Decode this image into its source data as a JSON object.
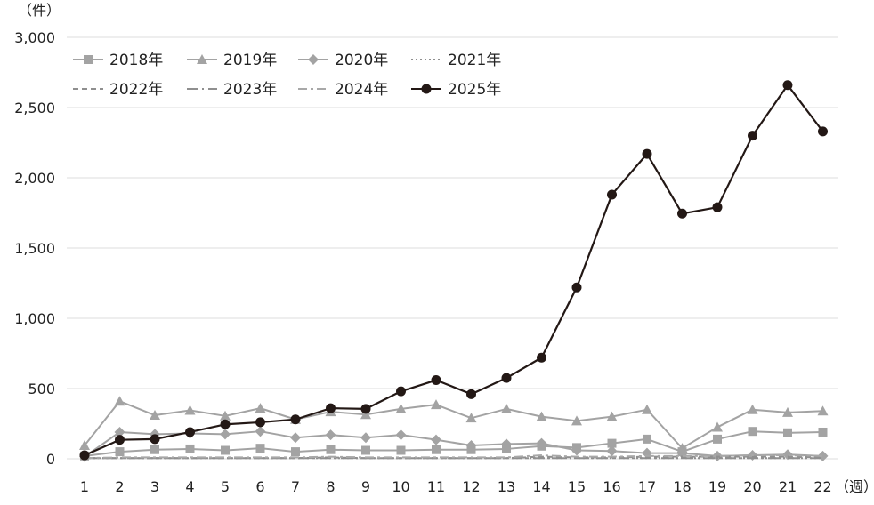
{
  "chart_data": {
    "type": "line",
    "y_unit_label": "（件）",
    "x_unit_label": "（週）",
    "x": [
      1,
      2,
      3,
      4,
      5,
      6,
      7,
      8,
      9,
      10,
      11,
      12,
      13,
      14,
      15,
      16,
      17,
      18,
      19,
      20,
      21,
      22
    ],
    "ylim": [
      0,
      3000
    ],
    "yticks": [
      0,
      500,
      1000,
      1500,
      2000,
      2500,
      3000
    ],
    "ytick_labels": [
      "0",
      "500",
      "1,000",
      "1,500",
      "2,000",
      "2,500",
      "3,000"
    ],
    "grid": true,
    "legend_position": "top-left",
    "series": [
      {
        "name": "2018年",
        "color": "#a3a3a3",
        "dash": "",
        "marker": "square",
        "values": [
          20,
          50,
          65,
          70,
          60,
          75,
          50,
          65,
          60,
          60,
          65,
          65,
          70,
          90,
          80,
          110,
          140,
          50,
          140,
          195,
          185,
          190
        ]
      },
      {
        "name": "2019年",
        "color": "#a3a3a3",
        "dash": "",
        "marker": "triangle",
        "values": [
          95,
          410,
          310,
          345,
          305,
          360,
          280,
          335,
          315,
          355,
          385,
          290,
          355,
          300,
          270,
          300,
          350,
          75,
          225,
          350,
          330,
          340
        ]
      },
      {
        "name": "2020年",
        "color": "#a3a3a3",
        "dash": "",
        "marker": "diamond",
        "values": [
          15,
          190,
          175,
          180,
          175,
          195,
          150,
          170,
          150,
          170,
          135,
          95,
          105,
          110,
          60,
          55,
          40,
          40,
          20,
          25,
          30,
          20
        ]
      },
      {
        "name": "2021年",
        "color": "#8f8f8f",
        "dash": "2,3",
        "marker": "none",
        "values": [
          5,
          5,
          5,
          5,
          5,
          5,
          5,
          5,
          5,
          5,
          5,
          5,
          5,
          5,
          5,
          5,
          5,
          5,
          5,
          5,
          5,
          5
        ]
      },
      {
        "name": "2022年",
        "color": "#8f8f8f",
        "dash": "6,4",
        "marker": "none",
        "values": [
          5,
          5,
          5,
          5,
          5,
          5,
          5,
          10,
          5,
          5,
          5,
          5,
          5,
          15,
          10,
          10,
          15,
          15,
          15,
          15,
          15,
          10
        ]
      },
      {
        "name": "2023年",
        "color": "#8f8f8f",
        "dash": "12,5,2,5",
        "marker": "none",
        "values": [
          5,
          5,
          5,
          5,
          5,
          5,
          5,
          5,
          5,
          5,
          5,
          5,
          5,
          5,
          5,
          5,
          5,
          5,
          5,
          5,
          5,
          5
        ]
      },
      {
        "name": "2024年",
        "color": "#a8a8a8",
        "dash": "10,4,3,4",
        "marker": "none",
        "values": [
          5,
          10,
          10,
          10,
          10,
          10,
          10,
          15,
          10,
          10,
          10,
          10,
          10,
          25,
          15,
          15,
          20,
          20,
          20,
          25,
          25,
          20
        ]
      },
      {
        "name": "2025年",
        "color": "#231815",
        "dash": "",
        "marker": "circle",
        "values": [
          25,
          135,
          140,
          190,
          245,
          260,
          280,
          360,
          355,
          480,
          560,
          460,
          575,
          720,
          1220,
          1880,
          2170,
          1745,
          1790,
          2300,
          2660,
          2330
        ]
      }
    ]
  }
}
